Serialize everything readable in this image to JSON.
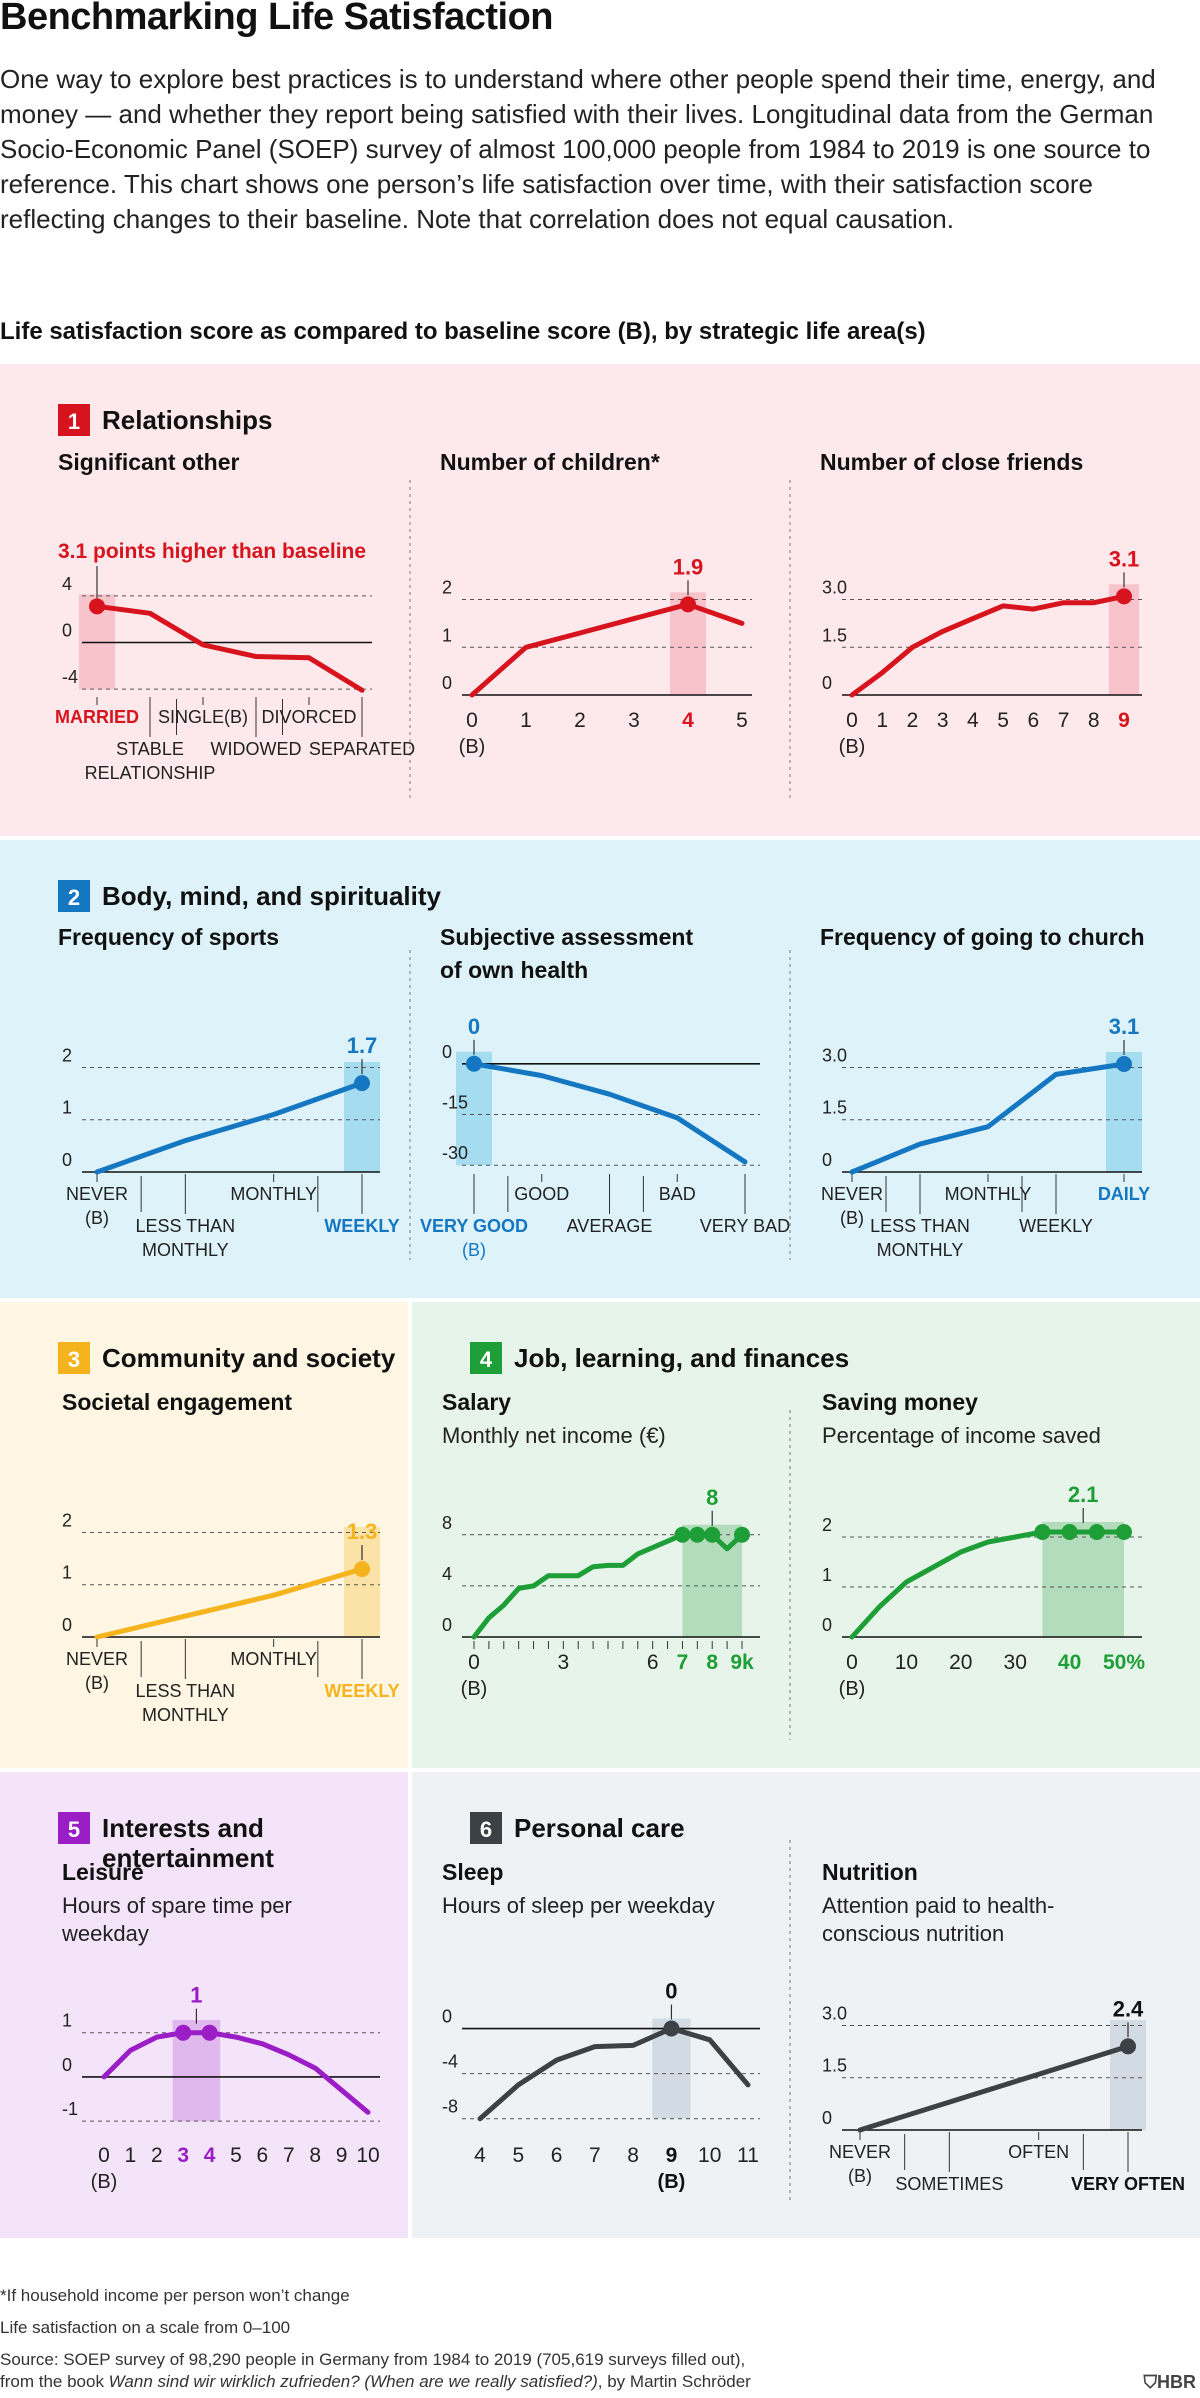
{
  "header": {
    "title": "Benchmarking Life Satisfaction",
    "intro": "One way to explore best practices is to understand where other people spend their time, energy, and money — and whether they report being satisfied with their lives. Longitudinal data from the German Socio-Economic Panel (SOEP) survey of almost 100,000 people from 1984 to 2019 is one source to reference. This chart shows one person’s life satisfaction over time, with their satisfaction score reflecting changes to their baseline. Note that correlation does not equal causation.",
    "chart_heading": "Life satisfaction score as compared to baseline score (B), by strategic life area(s)"
  },
  "colors": {
    "red": "#d7141e",
    "red_bg": "#fde8ec",
    "red_band": "#f9c3cc",
    "blue": "#1577c2",
    "blue_bg": "#ddf3f9",
    "blue_band": "#a6dcef",
    "yellow": "#f5b41d",
    "yellow_bg": "#fef6e3",
    "yellow_band": "#fbe2a6",
    "green": "#1e9e37",
    "green_bg": "#e7f4e9",
    "green_band": "#b3dcbc",
    "purple": "#9a1dc6",
    "purple_bg": "#f4e4f9",
    "purple_band": "#e0b8ee",
    "gray": "#3b4144",
    "gray_bg": "#eef2f5",
    "gray_band": "#d2dbe3"
  },
  "sections": {
    "relationships": {
      "num": "1",
      "title": "Relationships"
    },
    "body": {
      "num": "2",
      "title": "Body, mind, and spirituality"
    },
    "community": {
      "num": "3",
      "title": "Community and society"
    },
    "job": {
      "num": "4",
      "title": "Job, learning, and finances"
    },
    "interests": {
      "num": "5",
      "title_line1": "Interests and",
      "title_line2": "entertainment"
    },
    "personal": {
      "num": "6",
      "title": "Personal care"
    }
  },
  "chart_data": [
    {
      "id": "significant_other",
      "type": "line",
      "section": "relationships",
      "color": "red",
      "title": "Significant other",
      "subtitle": "",
      "callout": "3.1 points higher than baseline",
      "yticks": [
        4,
        0,
        -4
      ],
      "ylim": [
        -4.5,
        4.5
      ],
      "x": [
        0,
        1,
        2,
        3,
        4,
        5
      ],
      "values": [
        3.1,
        2.5,
        -0.2,
        -1.2,
        -1.3,
        -4.1
      ],
      "highlight": {
        "index": 0
      },
      "categories": [
        {
          "lines": [
            "MARRIED"
          ],
          "level": 0,
          "emph": true,
          "sep": false
        },
        {
          "lines": [
            "STABLE",
            "RELATIONSHIP"
          ],
          "level": 1,
          "emph": false,
          "sep": false
        },
        {
          "lines": [
            "SINGLE(B)"
          ],
          "level": 0,
          "emph": false,
          "sep": true
        },
        {
          "lines": [
            "WIDOWED"
          ],
          "level": 1,
          "emph": false,
          "sep": false
        },
        {
          "lines": [
            "DIVORCED"
          ],
          "level": 0,
          "emph": false,
          "sep": true
        },
        {
          "lines": [
            "SEPARATED"
          ],
          "level": 1,
          "emph": false,
          "sep": false
        }
      ]
    },
    {
      "id": "children",
      "type": "line",
      "section": "relationships",
      "color": "red",
      "title": "Number of children*",
      "subtitle": "",
      "callout": "1.9",
      "yticks": [
        2,
        1,
        0
      ],
      "ylim": [
        0,
        2.2
      ],
      "x": [
        0,
        1,
        2,
        3,
        4,
        5
      ],
      "values": [
        0,
        1.0,
        1.3,
        1.6,
        1.9,
        1.5
      ],
      "highlight": {
        "index": 4
      },
      "xticks": [
        "0",
        "1",
        "2",
        "3",
        "4",
        "5"
      ],
      "xtick_emph": [
        4
      ],
      "baseline_tick": 0,
      "baseline_label": "(B)"
    },
    {
      "id": "friends",
      "type": "line",
      "section": "relationships",
      "color": "red",
      "title": "Number of close friends",
      "subtitle": "",
      "callout": "3.1",
      "yticks": [
        3.0,
        1.5,
        0
      ],
      "ylim": [
        0,
        3.3
      ],
      "x": [
        0,
        1,
        2,
        3,
        4,
        5,
        6,
        7,
        8,
        9
      ],
      "values": [
        0,
        0.7,
        1.5,
        2.0,
        2.4,
        2.8,
        2.7,
        2.9,
        2.9,
        3.1
      ],
      "highlight": {
        "index": 9
      },
      "xticks": [
        "0",
        "1",
        "2",
        "3",
        "4",
        "5",
        "6",
        "7",
        "8",
        "9"
      ],
      "xtick_emph": [
        9
      ],
      "baseline_tick": 0,
      "baseline_label": "(B)"
    },
    {
      "id": "sports",
      "type": "line",
      "section": "body",
      "color": "blue",
      "title": "Frequency of sports",
      "subtitle": "",
      "callout": "1.7",
      "yticks": [
        2,
        1,
        0
      ],
      "ylim": [
        0,
        2.2
      ],
      "x": [
        0,
        1,
        2,
        3
      ],
      "values": [
        0,
        0.6,
        1.1,
        1.7
      ],
      "highlight": {
        "index": 3
      },
      "categories": [
        {
          "lines": [
            "NEVER",
            "(B)"
          ],
          "level": 0,
          "emph": false,
          "sep": false
        },
        {
          "lines": [
            "LESS THAN",
            "MONTHLY"
          ],
          "level": 1,
          "emph": false,
          "sep": true
        },
        {
          "lines": [
            "MONTHLY"
          ],
          "level": 0,
          "emph": false,
          "sep": false
        },
        {
          "lines": [
            "WEEKLY"
          ],
          "level": 1,
          "emph": true,
          "sep": true
        }
      ]
    },
    {
      "id": "health",
      "type": "line",
      "section": "body",
      "color": "blue",
      "title": "Subjective assessment",
      "title_line2": "of own health",
      "callout": "0",
      "yticks": [
        0,
        -15,
        -30
      ],
      "ylim": [
        -32,
        2
      ],
      "x": [
        0,
        1,
        2,
        3,
        4
      ],
      "values": [
        0,
        -3.5,
        -9,
        -16,
        -29
      ],
      "highlight": {
        "index": 0
      },
      "categories": [
        {
          "lines": [
            "VERY GOOD",
            "(B)"
          ],
          "level": 1,
          "emph": true,
          "sep": false
        },
        {
          "lines": [
            "GOOD"
          ],
          "level": 0,
          "emph": false,
          "sep": true
        },
        {
          "lines": [
            "AVERAGE"
          ],
          "level": 1,
          "emph": false,
          "sep": false
        },
        {
          "lines": [
            "BAD"
          ],
          "level": 0,
          "emph": false,
          "sep": true
        },
        {
          "lines": [
            "VERY BAD"
          ],
          "level": 1,
          "emph": false,
          "sep": false
        }
      ]
    },
    {
      "id": "church",
      "type": "line",
      "section": "body",
      "color": "blue",
      "title": "Frequency of going to church",
      "subtitle": "",
      "callout": "3.1",
      "yticks": [
        3.0,
        1.5,
        0
      ],
      "ylim": [
        0,
        3.3
      ],
      "x": [
        0,
        1,
        2,
        3,
        4
      ],
      "values": [
        0,
        0.8,
        1.3,
        2.8,
        3.1
      ],
      "highlight": {
        "index": 4
      },
      "categories": [
        {
          "lines": [
            "NEVER",
            "(B)"
          ],
          "level": 0,
          "emph": false,
          "sep": false
        },
        {
          "lines": [
            "LESS THAN",
            "MONTHLY"
          ],
          "level": 1,
          "emph": false,
          "sep": true
        },
        {
          "lines": [
            "MONTHLY"
          ],
          "level": 0,
          "emph": false,
          "sep": false
        },
        {
          "lines": [
            "WEEKLY"
          ],
          "level": 1,
          "emph": false,
          "sep": true
        },
        {
          "lines": [
            "DAILY"
          ],
          "level": 0,
          "emph": true,
          "sep": false
        }
      ]
    },
    {
      "id": "societal",
      "type": "line",
      "section": "community",
      "color": "yellow",
      "title": "Societal engagement",
      "subtitle": "",
      "callout": "1.3",
      "yticks": [
        2,
        1,
        0
      ],
      "ylim": [
        0,
        2.2
      ],
      "x": [
        0,
        1,
        2,
        3
      ],
      "values": [
        0,
        0.4,
        0.8,
        1.3
      ],
      "highlight": {
        "index": 3
      },
      "categories": [
        {
          "lines": [
            "NEVER",
            "(B)"
          ],
          "level": 0,
          "emph": false,
          "sep": false
        },
        {
          "lines": [
            "LESS THAN",
            "MONTHLY"
          ],
          "level": 1,
          "emph": false,
          "sep": true
        },
        {
          "lines": [
            "MONTHLY"
          ],
          "level": 0,
          "emph": false,
          "sep": false
        },
        {
          "lines": [
            "WEEKLY"
          ],
          "level": 1,
          "emph": true,
          "sep": true
        }
      ]
    },
    {
      "id": "salary",
      "type": "line",
      "section": "job",
      "color": "green",
      "title": "Salary",
      "subtitle": "Monthly net income (€)",
      "callout": "8",
      "yticks": [
        8,
        4,
        0
      ],
      "ylim": [
        0,
        9
      ],
      "xlim": [
        0,
        9
      ],
      "x": [
        0,
        0.5,
        1.0,
        1.5,
        2.0,
        2.5,
        3.0,
        3.5,
        4.0,
        4.5,
        5.0,
        5.5,
        6.0,
        6.5,
        7.0,
        7.5,
        8.0,
        8.5,
        9.0
      ],
      "values": [
        0,
        1.5,
        2.5,
        3.8,
        4.0,
        4.8,
        4.8,
        4.8,
        5.5,
        5.6,
        5.6,
        6.5,
        7.0,
        7.5,
        8.0,
        8.0,
        8.0,
        6.9,
        8.0
      ],
      "highlight": {
        "from": 7,
        "to": 9,
        "points": [
          7,
          7.5,
          8,
          9
        ]
      },
      "xticks": [
        {
          "v": 0,
          "t": "0"
        },
        {
          "v": 3,
          "t": "3"
        },
        {
          "v": 6,
          "t": "6"
        },
        {
          "v": 7,
          "t": "7"
        },
        {
          "v": 8,
          "t": "8"
        },
        {
          "v": 9,
          "t": "9k"
        }
      ],
      "xtick_emph": [
        7,
        8,
        9
      ],
      "minor_ticks": true,
      "baseline_label": "(B)"
    },
    {
      "id": "saving",
      "type": "line",
      "section": "job",
      "color": "green",
      "title": "Saving money",
      "subtitle": "Percentage of income saved",
      "callout": "2.1",
      "yticks": [
        2,
        1,
        0
      ],
      "ylim": [
        0,
        2.3
      ],
      "xlim": [
        0,
        50
      ],
      "x": [
        0,
        5,
        10,
        15,
        20,
        25,
        30,
        35,
        40,
        45,
        50
      ],
      "values": [
        0,
        0.6,
        1.1,
        1.4,
        1.7,
        1.9,
        2.0,
        2.1,
        2.1,
        2.1,
        2.1
      ],
      "highlight": {
        "from": 35,
        "to": 50,
        "points": [
          35,
          40,
          45,
          50
        ]
      },
      "xticks": [
        {
          "v": 0,
          "t": "0"
        },
        {
          "v": 10,
          "t": "10"
        },
        {
          "v": 20,
          "t": "20"
        },
        {
          "v": 30,
          "t": "30"
        },
        {
          "v": 40,
          "t": "40"
        },
        {
          "v": 50,
          "t": "50%"
        }
      ],
      "xtick_emph": [
        40,
        50
      ],
      "baseline_label": "(B)"
    },
    {
      "id": "leisure",
      "type": "line",
      "section": "interests",
      "color": "purple",
      "title": "Leisure",
      "subtitle": "Hours of spare time per",
      "subtitle_line2": "weekday",
      "callout": "1",
      "yticks": [
        1,
        0,
        -1
      ],
      "ylim": [
        -1.2,
        1.4
      ],
      "xlim": [
        0,
        10
      ],
      "x": [
        0,
        1,
        2,
        3,
        4,
        5,
        6,
        7,
        8,
        9,
        10
      ],
      "values": [
        0,
        0.6,
        0.9,
        1.0,
        1.0,
        0.9,
        0.75,
        0.5,
        0.2,
        -0.3,
        -0.8
      ],
      "highlight": {
        "from": 2.6,
        "to": 4.4,
        "points": [
          3,
          4
        ]
      },
      "xticks": [
        {
          "v": 0,
          "t": "0"
        },
        {
          "v": 1,
          "t": "1"
        },
        {
          "v": 2,
          "t": "2"
        },
        {
          "v": 3,
          "t": "3"
        },
        {
          "v": 4,
          "t": "4"
        },
        {
          "v": 5,
          "t": "5"
        },
        {
          "v": 6,
          "t": "6"
        },
        {
          "v": 7,
          "t": "7"
        },
        {
          "v": 8,
          "t": "8"
        },
        {
          "v": 9,
          "t": "9"
        },
        {
          "v": 10,
          "t": "10"
        }
      ],
      "xtick_emph": [
        3,
        4
      ],
      "baseline_label": "(B)"
    },
    {
      "id": "sleep",
      "type": "line",
      "section": "personal",
      "color": "gray",
      "title": "Sleep",
      "subtitle": "Hours of sleep per weekday",
      "callout": "0",
      "yticks": [
        0,
        -4,
        -8
      ],
      "ylim": [
        -9,
        1.2
      ],
      "xlim": [
        4,
        11
      ],
      "x": [
        4,
        5,
        6,
        7,
        8,
        9,
        10,
        11
      ],
      "values": [
        -8,
        -5,
        -2.8,
        -1.6,
        -1.5,
        0,
        -1,
        -5
      ],
      "highlight": {
        "from": 8.5,
        "to": 9.5,
        "points": [
          9
        ]
      },
      "xticks": [
        {
          "v": 4,
          "t": "4"
        },
        {
          "v": 5,
          "t": "5"
        },
        {
          "v": 6,
          "t": "6"
        },
        {
          "v": 7,
          "t": "7"
        },
        {
          "v": 8,
          "t": "8"
        },
        {
          "v": 9,
          "t": "9"
        },
        {
          "v": 10,
          "t": "10"
        },
        {
          "v": 11,
          "t": "11"
        }
      ],
      "xtick_emph": [
        9
      ],
      "baseline_tick": 9,
      "baseline_label": "(B)"
    },
    {
      "id": "nutrition",
      "type": "line",
      "section": "personal",
      "color": "gray",
      "title": "Nutrition",
      "subtitle": "Attention paid to health-",
      "subtitle_line2": "conscious nutrition",
      "callout": "2.4",
      "yticks": [
        3.0,
        1.5,
        0
      ],
      "ylim": [
        0,
        3.3
      ],
      "x": [
        0,
        1,
        2,
        3
      ],
      "values": [
        0,
        0.8,
        1.6,
        2.4
      ],
      "highlight": {
        "index": 3
      },
      "categories": [
        {
          "lines": [
            "NEVER",
            "(B)"
          ],
          "level": 0,
          "emph": false,
          "sep": false
        },
        {
          "lines": [
            "SOMETIMES"
          ],
          "level": 1,
          "emph": false,
          "sep": true
        },
        {
          "lines": [
            "OFTEN"
          ],
          "level": 0,
          "emph": false,
          "sep": false
        },
        {
          "lines": [
            "VERY OFTEN"
          ],
          "level": 1,
          "emph": true,
          "sep": true
        }
      ]
    }
  ],
  "footnotes": {
    "asterisk": "*If household income per person won’t change",
    "scale": "Life satisfaction on a scale from 0–100",
    "source_line1": "Source: SOEP survey of 98,290 people in Germany from 1984 to 2019 (705,619 surveys filled out),",
    "source_line2_prefix": "from the book ",
    "source_line2_italic": "Wann sind wir wirklich zufrieden? (When are we really satisfied?)",
    "source_line2_suffix": ", by Martin Schröder",
    "logo": "HBR"
  }
}
